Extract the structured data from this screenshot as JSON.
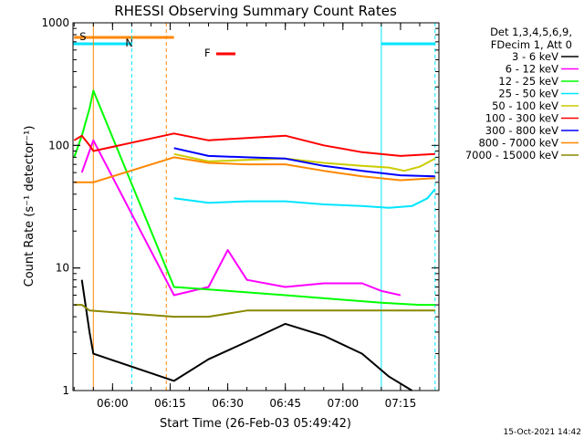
{
  "chart_data": {
    "type": "line",
    "title": "RHESSI Observing Summary Count Rates",
    "xlabel": "Start Time (26-Feb-03 05:49:42)",
    "ylabel": "Count Rate (s⁻¹ detector⁻¹)",
    "yscale": "log",
    "ylim": [
      1,
      1000
    ],
    "xlim": [
      "05:49:42",
      "07:25:00"
    ],
    "y_ticks": [
      "1",
      "10",
      "100",
      "1000"
    ],
    "x_ticks": [
      "06:00",
      "06:15",
      "06:30",
      "06:45",
      "07:00",
      "07:15"
    ],
    "x_ticks_time": [
      "06:00",
      "06:15",
      "06:30",
      "06:45",
      "07:00",
      "07:15"
    ],
    "legend_header": [
      "Det 1,3,4,5,6,9,",
      "FDecim 1, Att 0"
    ],
    "legend_position": "right",
    "series": [
      {
        "name": "3 - 6 keV",
        "color": "#000000",
        "x": [
          "05:52",
          "05:54",
          "05:55",
          "06:16",
          "06:25",
          "06:35",
          "06:45",
          "06:55",
          "07:05",
          "07:12",
          "07:18"
        ],
        "values": [
          8,
          3,
          2,
          1.2,
          1.8,
          2.5,
          3.5,
          2.8,
          2.0,
          1.3,
          1
        ]
      },
      {
        "name": "6 - 12 keV",
        "color": "#ff00ff",
        "x": [
          "05:52",
          "05:54",
          "05:55",
          "06:16",
          "06:25",
          "06:30",
          "06:35",
          "06:45",
          "06:55",
          "07:05",
          "07:10",
          "07:15"
        ],
        "values": [
          60,
          90,
          110,
          6,
          7,
          14,
          8,
          7,
          7.5,
          7.5,
          6.5,
          6
        ]
      },
      {
        "name": "12 - 25 keV",
        "color": "#00ff00",
        "x": [
          "05:50",
          "05:52",
          "05:54",
          "05:55",
          "06:16",
          "06:30",
          "06:45",
          "07:00",
          "07:10",
          "07:20",
          "07:24"
        ],
        "values": [
          80,
          120,
          200,
          280,
          7,
          6.5,
          6,
          5.5,
          5.2,
          5,
          5
        ]
      },
      {
        "name": "25 - 50 keV",
        "color": "#00e5ff",
        "x": [
          "06:16",
          "06:25",
          "06:35",
          "06:45",
          "06:55",
          "07:05",
          "07:12",
          "07:18",
          "07:22",
          "07:24"
        ],
        "values": [
          37,
          34,
          35,
          35,
          33,
          32,
          31,
          32,
          37,
          44
        ]
      },
      {
        "name": "50 - 100 keV",
        "color": "#cccc00",
        "x": [
          "06:16",
          "06:25",
          "06:35",
          "06:45",
          "06:55",
          "07:05",
          "07:12",
          "07:16",
          "07:20",
          "07:24"
        ],
        "values": [
          85,
          74,
          76,
          78,
          72,
          68,
          66,
          62,
          67,
          78
        ]
      },
      {
        "name": "100 - 300 keV",
        "color": "#ff0000",
        "x": [
          "05:50",
          "05:52",
          "05:54",
          "05:55",
          "06:16",
          "06:25",
          "06:35",
          "06:45",
          "06:55",
          "07:05",
          "07:15",
          "07:24"
        ],
        "values": [
          110,
          120,
          100,
          90,
          125,
          110,
          115,
          120,
          100,
          88,
          82,
          85
        ]
      },
      {
        "name": "300 - 800 keV",
        "color": "#0000ff",
        "x": [
          "06:16",
          "06:25",
          "06:35",
          "06:45",
          "06:55",
          "07:05",
          "07:15",
          "07:24"
        ],
        "values": [
          95,
          82,
          80,
          78,
          68,
          62,
          57,
          56
        ]
      },
      {
        "name": "800 - 7000 keV",
        "color": "#ff8800",
        "x": [
          "05:50",
          "05:52",
          "05:54",
          "05:55",
          "06:16",
          "06:25",
          "06:35",
          "06:45",
          "06:55",
          "07:05",
          "07:15",
          "07:24"
        ],
        "values": [
          50,
          50,
          50,
          50,
          80,
          72,
          70,
          70,
          62,
          56,
          52,
          54
        ]
      },
      {
        "name": "7000 - 15000 keV",
        "color": "#888800",
        "x": [
          "05:50",
          "05:52",
          "05:54",
          "06:16",
          "06:25",
          "06:35",
          "06:45",
          "06:55",
          "07:05",
          "07:15",
          "07:24"
        ],
        "values": [
          5,
          5,
          4.5,
          4,
          4,
          4.5,
          4.5,
          4.5,
          4.5,
          4.5,
          4.5
        ]
      }
    ],
    "flags": {
      "S": {
        "label": "S",
        "color": "#ff8800",
        "start": "05:50",
        "end": "06:16"
      },
      "N": {
        "label": "N",
        "color": "#00e5ff",
        "segments": [
          [
            "05:49:42",
            "06:05"
          ],
          [
            "07:10",
            "07:24"
          ]
        ]
      },
      "F": {
        "label": "F",
        "color": "#ff0000",
        "start": "06:27",
        "end": "06:32"
      }
    },
    "vertical_lines": [
      {
        "time": "05:55",
        "color": "#ff8800",
        "style": "solid"
      },
      {
        "time": "06:05",
        "color": "#00e5ff",
        "style": "dashed"
      },
      {
        "time": "06:14",
        "color": "#ff8800",
        "style": "dashed"
      },
      {
        "time": "07:10",
        "color": "#00e5ff",
        "style": "solid"
      },
      {
        "time": "07:24",
        "color": "#00e5ff",
        "style": "dashed"
      }
    ]
  },
  "footer_timestamp": "15-Oct-2021 14:42"
}
